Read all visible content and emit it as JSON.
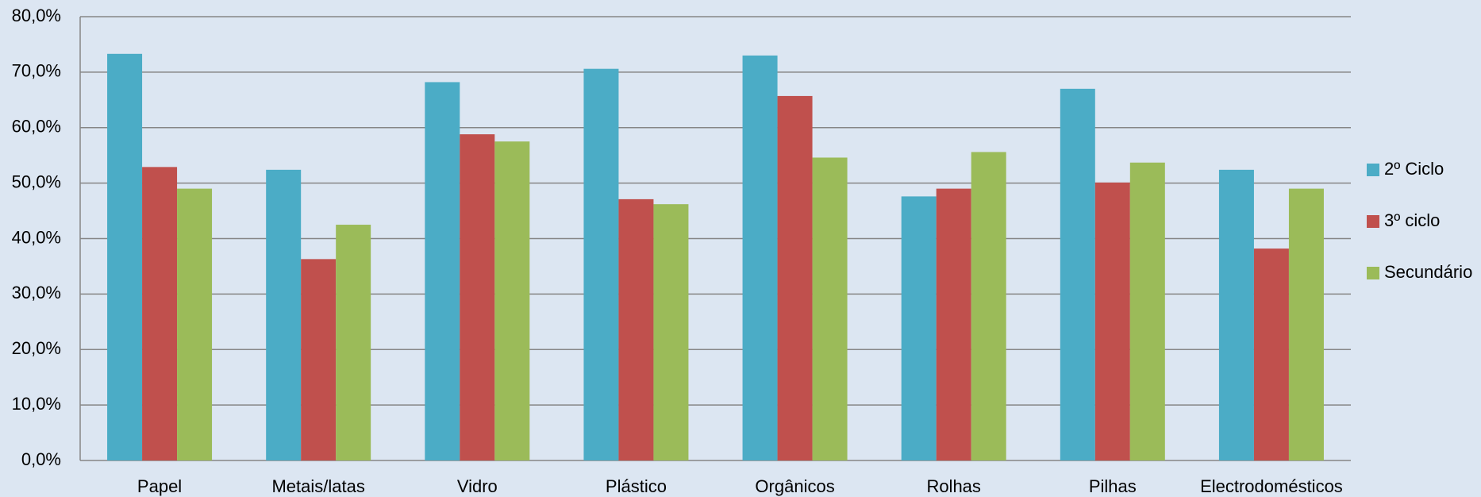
{
  "chart_data": {
    "type": "bar",
    "categories": [
      "Papel",
      "Metais/latas",
      "Vidro",
      "Plástico",
      "Orgânicos",
      "Rolhas",
      "Pilhas",
      "Electrodomésticos"
    ],
    "series": [
      {
        "name": "2º Ciclo",
        "color": "#4bacc6",
        "values": [
          73.3,
          52.4,
          68.2,
          70.6,
          73.0,
          47.6,
          67.0,
          52.4
        ]
      },
      {
        "name": "3º ciclo",
        "color": "#c0504d",
        "values": [
          52.9,
          36.3,
          58.8,
          47.1,
          65.7,
          49.0,
          50.1,
          38.2
        ]
      },
      {
        "name": "Secundário",
        "color": "#9bbb59",
        "values": [
          49.0,
          42.5,
          57.5,
          46.2,
          54.6,
          55.6,
          53.7,
          49.0
        ]
      }
    ],
    "ylim": [
      0,
      80
    ],
    "yticks": [
      {
        "value": 0,
        "label": "0,0%"
      },
      {
        "value": 10,
        "label": "10,0%"
      },
      {
        "value": 20,
        "label": "20,0%"
      },
      {
        "value": 30,
        "label": "30,0%"
      },
      {
        "value": 40,
        "label": "40,0%"
      },
      {
        "value": 50,
        "label": "50,0%"
      },
      {
        "value": 60,
        "label": "60,0%"
      },
      {
        "value": 70,
        "label": "70,0%"
      },
      {
        "value": 80,
        "label": "80,0%"
      }
    ],
    "grid": true,
    "legend": "right"
  }
}
